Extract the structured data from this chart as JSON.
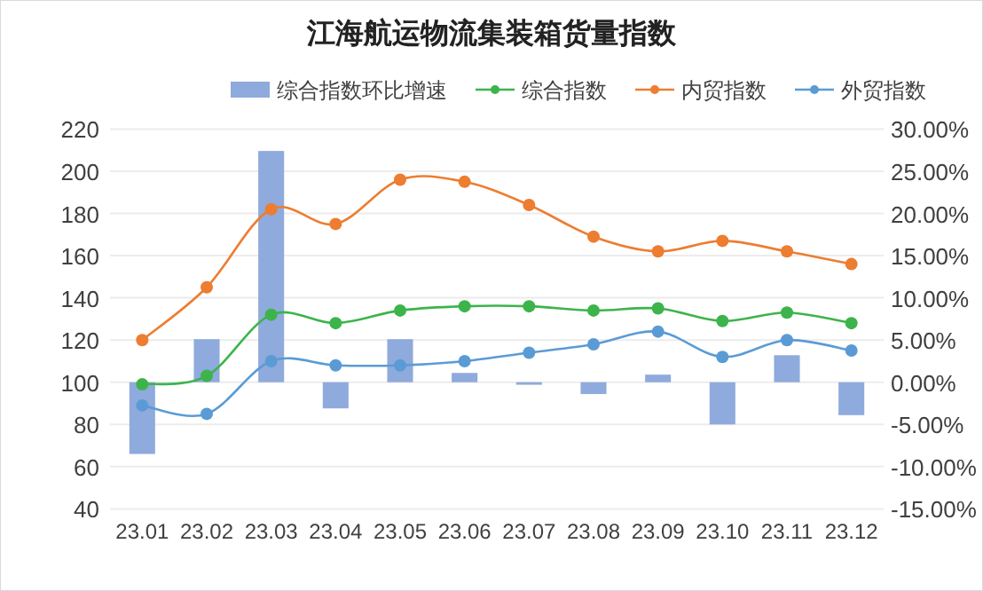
{
  "chart_data": {
    "type": "bar",
    "title": "江海航运物流集装箱货量指数",
    "categories": [
      "23.01",
      "23.02",
      "23.03",
      "23.04",
      "23.05",
      "23.06",
      "23.07",
      "23.08",
      "23.09",
      "23.10",
      "23.11",
      "23.12"
    ],
    "series": [
      {
        "name": "综合指数环比增速",
        "axis": "y2",
        "color": "#8faadc",
        "values": [
          -8.5,
          5.1,
          27.4,
          -3.1,
          5.1,
          1.1,
          -0.3,
          -1.4,
          0.9,
          -5.0,
          3.2,
          -3.9
        ]
      },
      {
        "name": "综合指数",
        "type": "line",
        "color": "#3cb44b",
        "values": [
          99,
          103,
          132,
          128,
          134,
          136,
          136,
          134,
          135,
          129,
          133,
          128
        ]
      },
      {
        "name": "内贸指数",
        "type": "line",
        "color": "#ed7d31",
        "values": [
          120,
          145,
          182,
          175,
          196,
          195,
          184,
          169,
          162,
          167,
          162,
          156
        ]
      },
      {
        "name": "外贸指数",
        "type": "line",
        "color": "#5b9bd5",
        "values": [
          89,
          85,
          110,
          108,
          108,
          110,
          114,
          118,
          124,
          112,
          120,
          115
        ]
      }
    ],
    "ylim": [
      40,
      220
    ],
    "yticks": [
      40,
      60,
      80,
      100,
      120,
      140,
      160,
      180,
      200,
      220
    ],
    "y2lim": [
      -15,
      30
    ],
    "y2ticks": [
      {
        "value": -15,
        "label": "-15.00%"
      },
      {
        "value": -10,
        "label": "-10.00%"
      },
      {
        "value": -5,
        "label": "-5.00%"
      },
      {
        "value": 0,
        "label": "0.00%"
      },
      {
        "value": 5,
        "label": "5.00%"
      },
      {
        "value": 10,
        "label": "10.00%"
      },
      {
        "value": 15,
        "label": "15.00%"
      },
      {
        "value": 20,
        "label": "20.00%"
      },
      {
        "value": 25,
        "label": "25.00%"
      },
      {
        "value": 30,
        "label": "30.00%"
      }
    ],
    "grid": "y",
    "legend": "top",
    "marker": "circle",
    "line_style": "solid"
  }
}
